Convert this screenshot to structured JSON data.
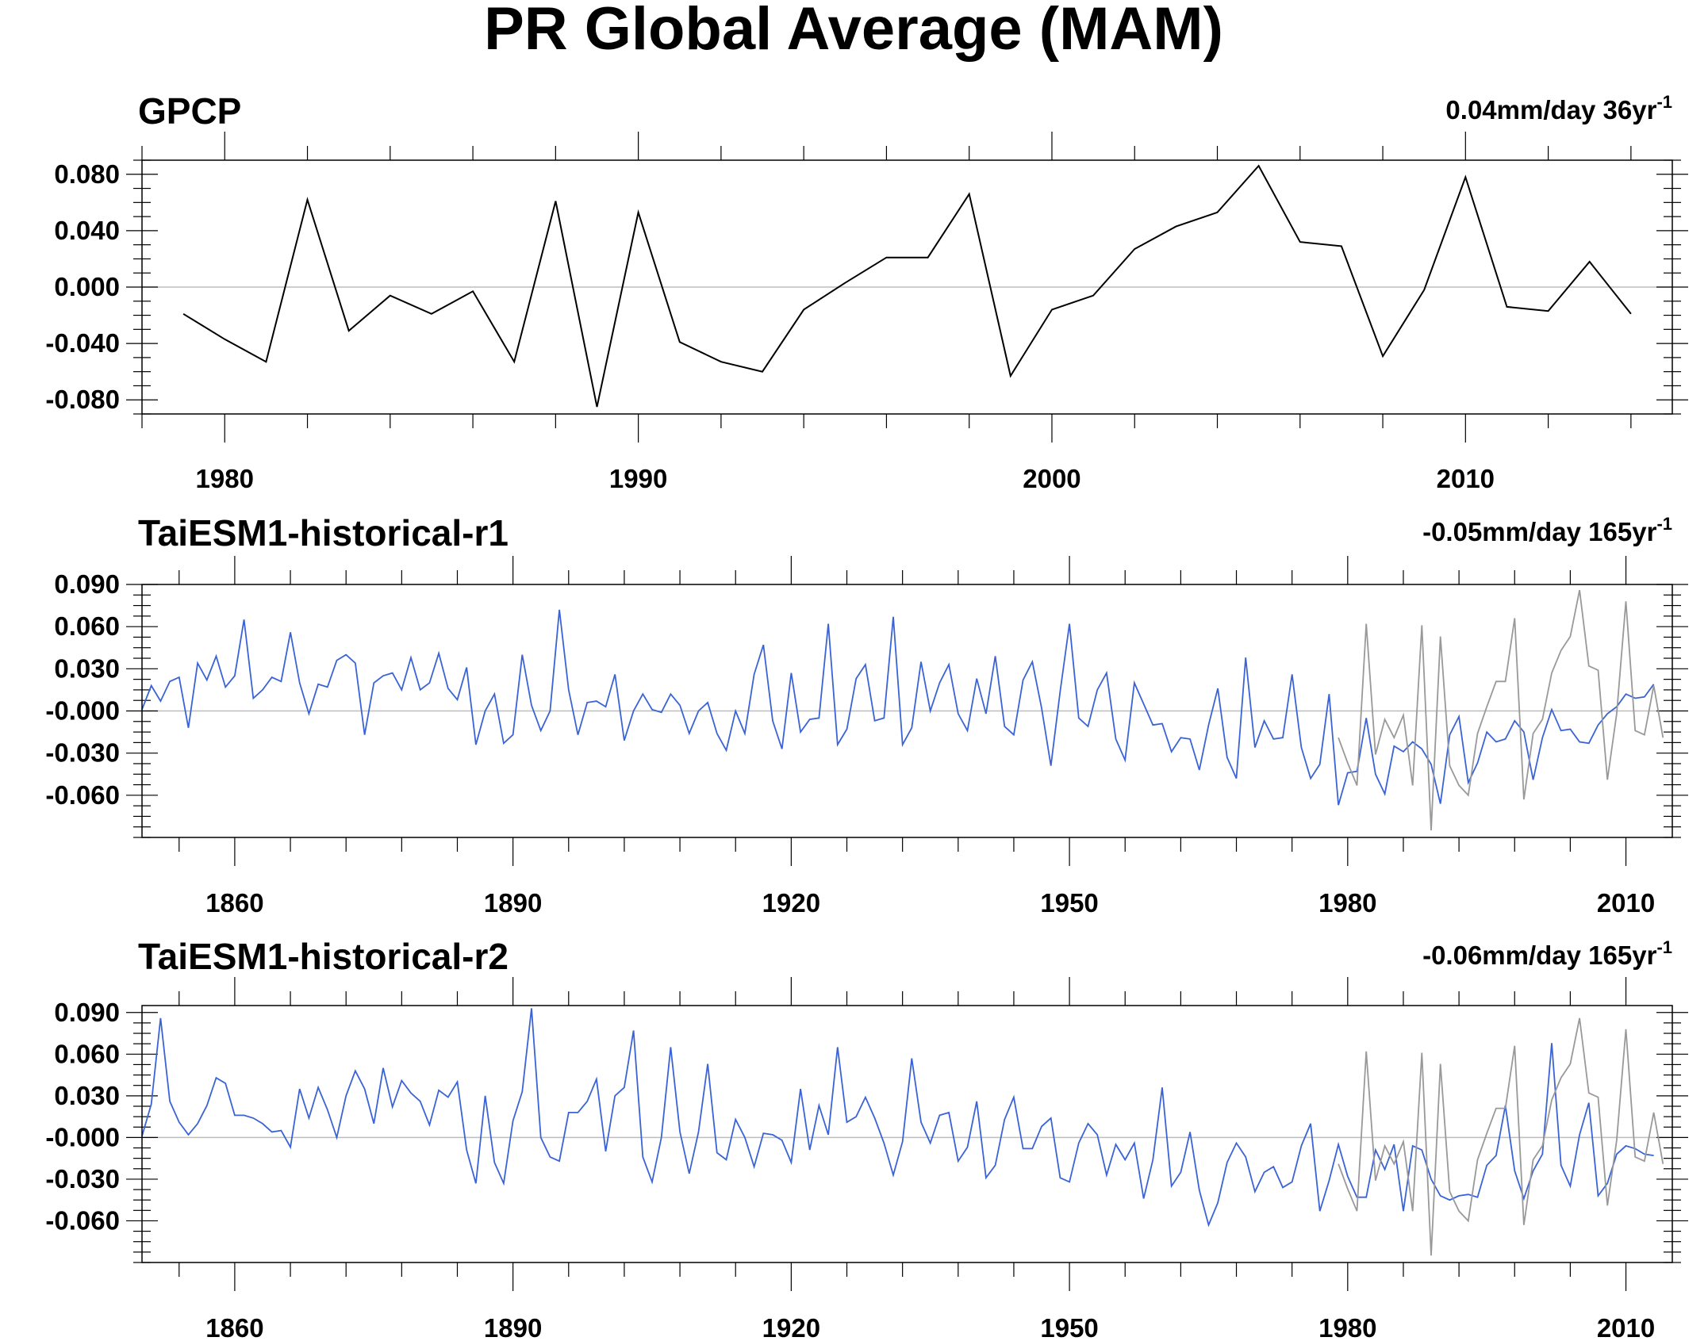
{
  "figure_title": "PR Global Average (MAM)",
  "colors": {
    "obs": "#000000",
    "model": "#3a63d6",
    "obs_overlay": "#999999",
    "zero_line": "#bdbdbd"
  },
  "chart_data": [
    {
      "type": "line",
      "title": "GPCP",
      "trend_label": "0.04mm/day 36yr",
      "trend_superscript": "-1",
      "xlim": [
        1978,
        2015
      ],
      "ylim": [
        -0.09,
        0.09
      ],
      "xticks": [
        1980,
        1990,
        2000,
        2010
      ],
      "xtick_labels": [
        "1980",
        "1990",
        "2000",
        "2010"
      ],
      "yticks": [
        0.08,
        0.04,
        0.0,
        -0.04,
        -0.08
      ],
      "ytick_labels": [
        "0.080",
        "0.040",
        "0.000",
        "-0.040",
        "-0.080"
      ],
      "zero_line": true,
      "series": [
        {
          "role": "obs",
          "x_start": 1979,
          "values": [
            -0.019,
            -0.037,
            -0.053,
            0.062,
            -0.031,
            -0.006,
            -0.019,
            -0.003,
            -0.053,
            0.061,
            -0.085,
            0.053,
            -0.039,
            -0.053,
            -0.06,
            -0.016,
            0.003,
            0.021,
            0.021,
            0.066,
            -0.063,
            -0.016,
            -0.006,
            0.027,
            0.043,
            0.053,
            0.086,
            0.032,
            0.029,
            -0.049,
            -0.002,
            0.078,
            -0.014,
            -0.017,
            0.018,
            -0.019
          ]
        }
      ]
    },
    {
      "type": "line",
      "title": "TaiESM1-historical-r1",
      "trend_label": "-0.05mm/day 165yr",
      "trend_superscript": "-1",
      "xlim": [
        1850,
        2015
      ],
      "ylim": [
        -0.09,
        0.09
      ],
      "xticks": [
        1860,
        1890,
        1920,
        1950,
        1980,
        2010
      ],
      "xtick_labels": [
        "1860",
        "1890",
        "1920",
        "1950",
        "1980",
        "2010"
      ],
      "yticks": [
        0.09,
        0.06,
        0.03,
        0.0,
        -0.03,
        -0.06
      ],
      "ytick_labels": [
        "0.090",
        "0.060",
        "0.030",
        "-0.000",
        "-0.030",
        "-0.060"
      ],
      "zero_line": true,
      "series": [
        {
          "role": "model",
          "x_start": 1850,
          "values": [
            0.001,
            0.018,
            0.007,
            0.021,
            0.024,
            -0.012,
            0.034,
            0.022,
            0.039,
            0.017,
            0.025,
            0.065,
            0.009,
            0.015,
            0.024,
            0.021,
            0.056,
            0.02,
            -0.002,
            0.019,
            0.017,
            0.036,
            0.04,
            0.034,
            -0.017,
            0.02,
            0.025,
            0.027,
            0.015,
            0.038,
            0.015,
            0.02,
            0.041,
            0.016,
            0.008,
            0.031,
            -0.024,
            0.0,
            0.012,
            -0.023,
            -0.017,
            0.04,
            0.004,
            -0.014,
            0.0,
            0.072,
            0.015,
            -0.017,
            0.006,
            0.007,
            0.003,
            0.026,
            -0.021,
            0.0,
            0.012,
            0.001,
            -0.001,
            0.012,
            0.004,
            -0.016,
            0.0,
            0.006,
            -0.016,
            -0.028,
            0.0,
            -0.016,
            0.026,
            0.047,
            -0.007,
            -0.027,
            0.027,
            -0.015,
            -0.006,
            -0.005,
            0.062,
            -0.024,
            -0.013,
            0.023,
            0.033,
            -0.007,
            -0.005,
            0.067,
            -0.024,
            -0.012,
            0.035,
            0.0,
            0.02,
            0.033,
            -0.002,
            -0.014,
            0.023,
            -0.002,
            0.039,
            -0.011,
            -0.017,
            0.022,
            0.035,
            0.002,
            -0.039,
            0.014,
            0.062,
            -0.005,
            -0.011,
            0.015,
            0.027,
            -0.02,
            -0.035,
            0.02,
            0.005,
            -0.01,
            -0.009,
            -0.029,
            -0.019,
            -0.02,
            -0.042,
            -0.01,
            0.016,
            -0.033,
            -0.048,
            0.038,
            -0.026,
            -0.007,
            -0.02,
            -0.019,
            0.026,
            -0.026,
            -0.048,
            -0.038,
            0.012,
            -0.067,
            -0.044,
            -0.043,
            -0.005,
            -0.045,
            -0.059,
            -0.025,
            -0.029,
            -0.022,
            -0.027,
            -0.038,
            -0.066,
            -0.017,
            -0.004,
            -0.051,
            -0.037,
            -0.015,
            -0.022,
            -0.02,
            -0.007,
            -0.015,
            -0.049,
            -0.019,
            0.001,
            -0.014,
            -0.013,
            -0.022,
            -0.023,
            -0.01,
            -0.002,
            0.003,
            0.012,
            0.009,
            0.01,
            0.019
          ]
        },
        {
          "role": "obs_overlay",
          "x_start": 1979,
          "values": [
            -0.019,
            -0.037,
            -0.053,
            0.062,
            -0.031,
            -0.006,
            -0.019,
            -0.003,
            -0.053,
            0.061,
            -0.085,
            0.053,
            -0.039,
            -0.053,
            -0.06,
            -0.016,
            0.003,
            0.021,
            0.021,
            0.066,
            -0.063,
            -0.016,
            -0.006,
            0.027,
            0.043,
            0.053,
            0.086,
            0.032,
            0.029,
            -0.049,
            -0.002,
            0.078,
            -0.014,
            -0.017,
            0.018,
            -0.019
          ]
        }
      ]
    },
    {
      "type": "line",
      "title": "TaiESM1-historical-r2",
      "trend_label": "-0.06mm/day 165yr",
      "trend_superscript": "-1",
      "xlim": [
        1850,
        2015
      ],
      "ylim": [
        -0.09,
        0.095
      ],
      "xticks": [
        1860,
        1890,
        1920,
        1950,
        1980,
        2010
      ],
      "xtick_labels": [
        "1860",
        "1890",
        "1920",
        "1950",
        "1980",
        "2010"
      ],
      "yticks": [
        0.09,
        0.06,
        0.03,
        0.0,
        -0.03,
        -0.06
      ],
      "ytick_labels": [
        "0.090",
        "0.060",
        "0.030",
        "-0.000",
        "-0.030",
        "-0.060"
      ],
      "zero_line": true,
      "series": [
        {
          "role": "model",
          "x_start": 1850,
          "values": [
            0.001,
            0.024,
            0.086,
            0.026,
            0.011,
            0.002,
            0.01,
            0.023,
            0.043,
            0.039,
            0.016,
            0.016,
            0.014,
            0.01,
            0.004,
            0.005,
            -0.007,
            0.035,
            0.014,
            0.036,
            0.02,
            0.0,
            0.03,
            0.048,
            0.035,
            0.01,
            0.05,
            0.022,
            0.041,
            0.032,
            0.026,
            0.009,
            0.034,
            0.029,
            0.04,
            -0.009,
            -0.033,
            0.03,
            -0.018,
            -0.033,
            0.012,
            0.033,
            0.093,
            0.0,
            -0.014,
            -0.017,
            0.018,
            0.018,
            0.026,
            0.042,
            -0.01,
            0.03,
            0.036,
            0.077,
            -0.014,
            -0.032,
            0.0,
            0.065,
            0.004,
            -0.026,
            0.004,
            0.053,
            -0.011,
            -0.016,
            0.013,
            0.0,
            -0.021,
            0.003,
            0.002,
            -0.002,
            -0.018,
            0.035,
            -0.009,
            0.023,
            0.002,
            0.065,
            0.011,
            0.015,
            0.029,
            0.014,
            -0.004,
            -0.027,
            -0.003,
            0.057,
            0.011,
            -0.004,
            0.016,
            0.018,
            -0.017,
            -0.007,
            0.026,
            -0.029,
            -0.02,
            0.013,
            0.029,
            -0.008,
            -0.008,
            0.008,
            0.014,
            -0.029,
            -0.032,
            -0.004,
            0.01,
            0.002,
            -0.027,
            -0.005,
            -0.016,
            -0.004,
            -0.044,
            -0.016,
            0.036,
            -0.035,
            -0.025,
            0.004,
            -0.038,
            -0.063,
            -0.047,
            -0.018,
            -0.004,
            -0.014,
            -0.039,
            -0.025,
            -0.021,
            -0.036,
            -0.032,
            -0.006,
            0.01,
            -0.053,
            -0.031,
            -0.005,
            -0.028,
            -0.043,
            -0.043,
            -0.009,
            -0.023,
            -0.005,
            -0.053,
            -0.006,
            -0.009,
            -0.03,
            -0.042,
            -0.045,
            -0.042,
            -0.041,
            -0.043,
            -0.02,
            -0.013,
            0.023,
            -0.024,
            -0.044,
            -0.024,
            -0.012,
            0.068,
            -0.02,
            -0.035,
            0.002,
            0.025,
            -0.042,
            -0.033,
            -0.012,
            -0.006,
            -0.008,
            -0.012,
            -0.013
          ]
        },
        {
          "role": "obs_overlay",
          "x_start": 1979,
          "values": [
            -0.019,
            -0.037,
            -0.053,
            0.062,
            -0.031,
            -0.006,
            -0.019,
            -0.003,
            -0.053,
            0.061,
            -0.085,
            0.053,
            -0.039,
            -0.053,
            -0.06,
            -0.016,
            0.003,
            0.021,
            0.021,
            0.066,
            -0.063,
            -0.016,
            -0.006,
            0.027,
            0.043,
            0.053,
            0.086,
            0.032,
            0.029,
            -0.049,
            -0.002,
            0.078,
            -0.014,
            -0.017,
            0.018,
            -0.019
          ]
        }
      ]
    }
  ]
}
